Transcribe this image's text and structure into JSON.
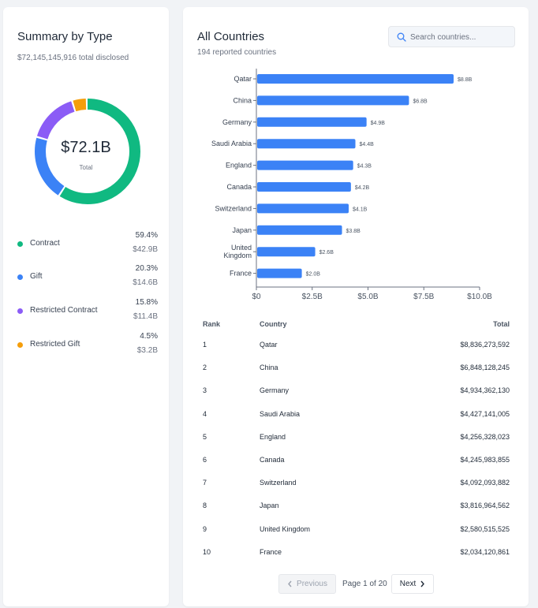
{
  "summary": {
    "title": "Summary by Type",
    "subtitle": "$72,145,145,916 total disclosed",
    "center_value": "$72.1B",
    "center_label": "Total",
    "types": [
      {
        "label": "Contract",
        "pct": "59.4%",
        "amount": "$42.9B",
        "fraction": 0.594,
        "color": "#10b981"
      },
      {
        "label": "Gift",
        "pct": "20.3%",
        "amount": "$14.6B",
        "fraction": 0.203,
        "color": "#3b82f6"
      },
      {
        "label": "Restricted Contract",
        "pct": "15.8%",
        "amount": "$11.4B",
        "fraction": 0.158,
        "color": "#8b5cf6"
      },
      {
        "label": "Restricted Gift",
        "pct": "4.5%",
        "amount": "$3.2B",
        "fraction": 0.045,
        "color": "#f59e0b"
      }
    ]
  },
  "countries": {
    "title": "All Countries",
    "subtitle": "194 reported countries",
    "search": {
      "placeholder": "Search countries...",
      "value": ""
    },
    "table": {
      "headers": {
        "rank": "Rank",
        "country": "Country",
        "total": "Total"
      },
      "rows": [
        {
          "rank": "1",
          "country": "Qatar",
          "total": "$8,836,273,592"
        },
        {
          "rank": "2",
          "country": "China",
          "total": "$6,848,128,245"
        },
        {
          "rank": "3",
          "country": "Germany",
          "total": "$4,934,362,130"
        },
        {
          "rank": "4",
          "country": "Saudi Arabia",
          "total": "$4,427,141,005"
        },
        {
          "rank": "5",
          "country": "England",
          "total": "$4,256,328,023"
        },
        {
          "rank": "6",
          "country": "Canada",
          "total": "$4,245,983,855"
        },
        {
          "rank": "7",
          "country": "Switzerland",
          "total": "$4,092,093,882"
        },
        {
          "rank": "8",
          "country": "Japan",
          "total": "$3,816,964,562"
        },
        {
          "rank": "9",
          "country": "United Kingdom",
          "total": "$2,580,515,525"
        },
        {
          "rank": "10",
          "country": "France",
          "total": "$2,034,120,861"
        }
      ]
    },
    "pagination": {
      "prev_label": "Previous",
      "page_info": "Page 1 of 20",
      "next_label": "Next"
    }
  },
  "colors": {
    "bar": "#3b82f6",
    "axis": "#6b7280"
  },
  "chart_data": {
    "type": "bar",
    "orientation": "horizontal",
    "categories": [
      "Qatar",
      "China",
      "Germany",
      "Saudi Arabia",
      "England",
      "Canada",
      "Switzerland",
      "Japan",
      "United Kingdom",
      "France"
    ],
    "category_lines": [
      [
        "Qatar"
      ],
      [
        "China"
      ],
      [
        "Germany"
      ],
      [
        "Saudi Arabia"
      ],
      [
        "England"
      ],
      [
        "Canada"
      ],
      [
        "Switzerland"
      ],
      [
        "Japan"
      ],
      [
        "United",
        "Kingdom"
      ],
      [
        "France"
      ]
    ],
    "values": [
      8.8,
      6.8,
      4.9,
      4.4,
      4.3,
      4.2,
      4.1,
      3.8,
      2.6,
      2.0
    ],
    "data_labels": [
      "$8.8B",
      "$6.8B",
      "$4.9B",
      "$4.4B",
      "$4.3B",
      "$4.2B",
      "$4.1B",
      "$3.8B",
      "$2.6B",
      "$2.0B"
    ],
    "xlim": [
      0,
      10
    ],
    "xticks": [
      0,
      2.5,
      5,
      7.5,
      10
    ],
    "xtick_labels": [
      "$0",
      "$2.5B",
      "$5.0B",
      "$7.5B",
      "$10.0B"
    ],
    "unit": "billions USD",
    "grid": false
  }
}
